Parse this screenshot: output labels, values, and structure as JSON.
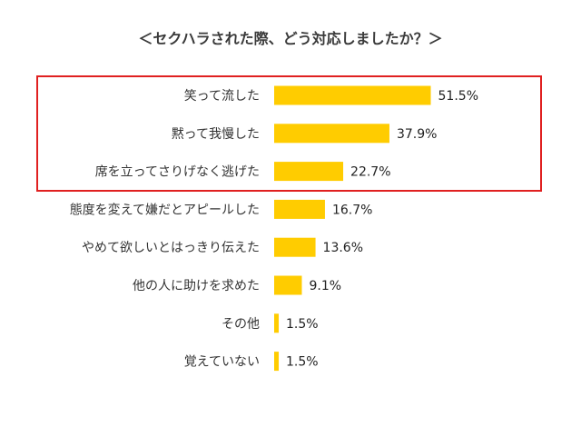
{
  "chart_data": {
    "type": "bar",
    "orientation": "horizontal",
    "title": "＜セクハラされた際、どう対応しましたか？＞",
    "categories": [
      "笑って流した",
      "黙って我慢した",
      "席を立ってさりげなく逃げた",
      "態度を変えて嫌だとアピールした",
      "やめて欲しいとはっきり伝えた",
      "他の人に助けを求めた",
      "その他",
      "覚えていない"
    ],
    "values": [
      51.5,
      37.9,
      22.7,
      16.7,
      13.6,
      9.1,
      1.5,
      1.5
    ],
    "value_labels": [
      "51.5%",
      "37.9%",
      "22.7%",
      "16.7%",
      "13.6%",
      "9.1%",
      "1.5%",
      "1.5%"
    ],
    "unit": "%",
    "xlim": [
      0,
      100
    ],
    "grid": false,
    "legend": "none",
    "highlighted_categories": [
      0,
      1,
      2
    ]
  },
  "colors": {
    "bar": "#FFCC00",
    "highlight_box": "#E02020",
    "text": "#333333"
  }
}
